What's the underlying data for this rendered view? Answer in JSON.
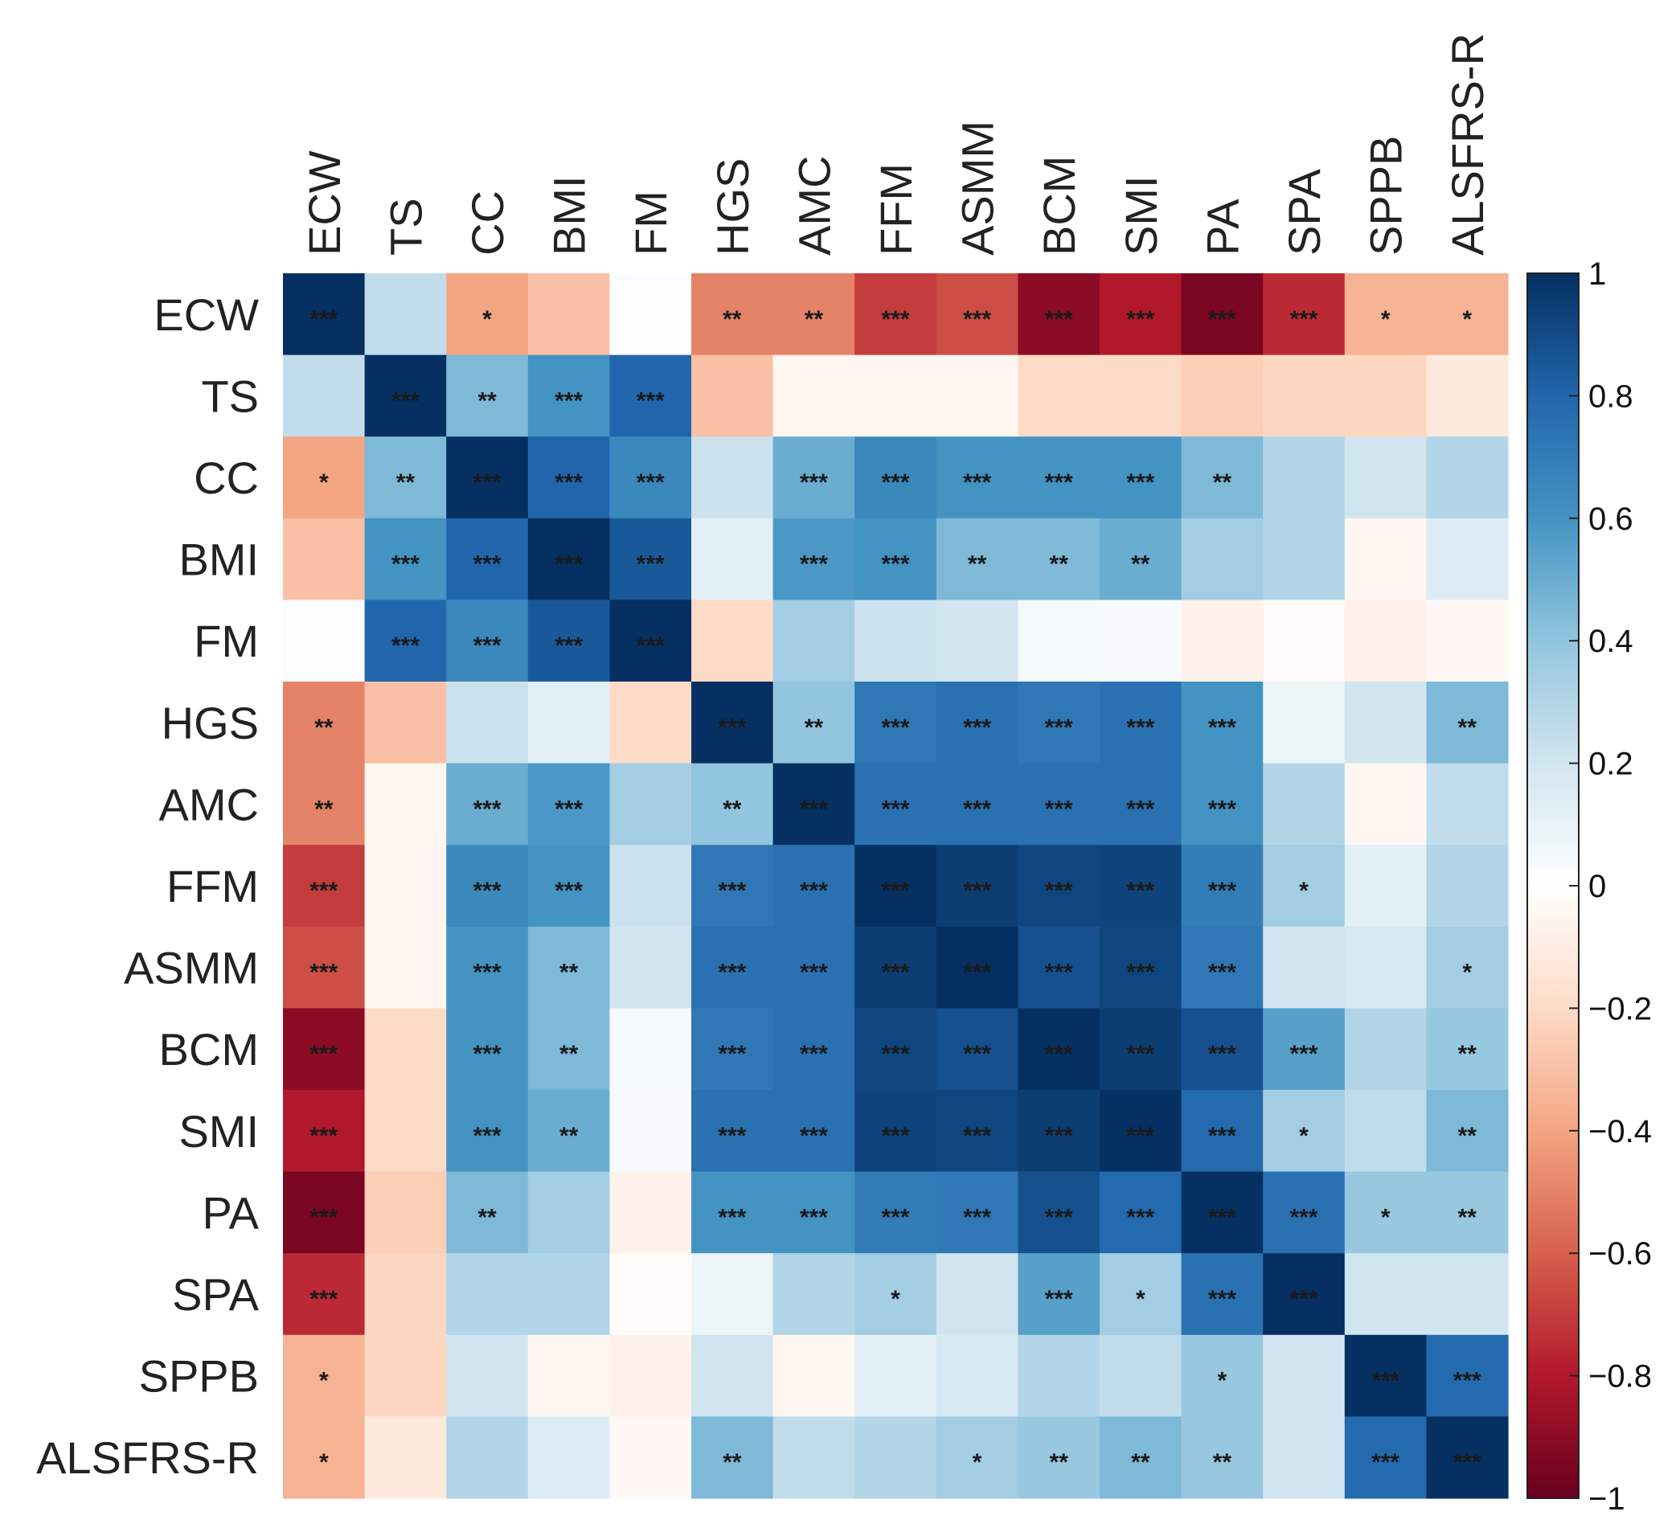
{
  "chart_data": {
    "type": "heatmap",
    "title": "",
    "variables": [
      "ECW",
      "TS",
      "CC",
      "BMI",
      "FM",
      "HGS",
      "AMC",
      "FFM",
      "ASMM",
      "BCM",
      "SMI",
      "PA",
      "SPA",
      "SPPB",
      "ALSFRS-R"
    ],
    "values": [
      [
        1,
        0.25,
        -0.4,
        -0.3,
        0.02,
        -0.5,
        -0.5,
        -0.7,
        -0.65,
        -0.9,
        -0.8,
        -0.95,
        -0.75,
        -0.35,
        -0.35
      ],
      [
        0.25,
        1,
        0.45,
        0.6,
        0.8,
        -0.3,
        -0.05,
        -0.05,
        -0.05,
        -0.2,
        -0.2,
        -0.25,
        -0.22,
        -0.22,
        -0.12
      ],
      [
        -0.4,
        0.45,
        1,
        0.8,
        0.65,
        0.22,
        0.5,
        0.65,
        0.6,
        0.6,
        0.6,
        0.45,
        0.3,
        0.2,
        0.3
      ],
      [
        -0.3,
        0.6,
        0.8,
        1,
        0.85,
        0.12,
        0.58,
        0.6,
        0.45,
        0.45,
        0.5,
        0.35,
        0.3,
        -0.05,
        0.15
      ],
      [
        0.02,
        0.8,
        0.65,
        0.85,
        1,
        -0.2,
        0.35,
        0.22,
        0.2,
        0.05,
        0.04,
        -0.08,
        -0.02,
        -0.08,
        -0.04
      ],
      [
        -0.5,
        -0.3,
        0.22,
        0.12,
        -0.2,
        1,
        0.4,
        0.72,
        0.75,
        0.72,
        0.75,
        0.6,
        0.08,
        0.2,
        0.45
      ],
      [
        -0.5,
        -0.05,
        0.5,
        0.58,
        0.35,
        0.4,
        1,
        0.75,
        0.75,
        0.75,
        0.75,
        0.6,
        0.3,
        -0.05,
        0.25
      ],
      [
        -0.7,
        -0.05,
        0.65,
        0.6,
        0.22,
        0.72,
        0.75,
        1,
        0.95,
        0.92,
        0.93,
        0.7,
        0.35,
        0.12,
        0.3
      ],
      [
        -0.65,
        -0.05,
        0.6,
        0.45,
        0.2,
        0.75,
        0.75,
        0.95,
        1,
        0.88,
        0.92,
        0.72,
        0.2,
        0.18,
        0.35
      ],
      [
        -0.9,
        -0.2,
        0.6,
        0.45,
        0.05,
        0.72,
        0.75,
        0.92,
        0.88,
        1,
        0.95,
        0.88,
        0.55,
        0.3,
        0.38
      ],
      [
        -0.8,
        -0.2,
        0.6,
        0.5,
        0.04,
        0.75,
        0.75,
        0.93,
        0.92,
        0.95,
        1,
        0.78,
        0.35,
        0.25,
        0.45
      ],
      [
        -0.95,
        -0.25,
        0.45,
        0.35,
        -0.08,
        0.6,
        0.6,
        0.7,
        0.72,
        0.88,
        0.78,
        1,
        0.75,
        0.38,
        0.38
      ],
      [
        -0.75,
        -0.22,
        0.3,
        0.3,
        -0.02,
        0.08,
        0.3,
        0.35,
        0.2,
        0.55,
        0.35,
        0.75,
        1,
        0.2,
        0.2
      ],
      [
        -0.35,
        -0.22,
        0.2,
        -0.05,
        -0.08,
        0.2,
        -0.05,
        0.12,
        0.18,
        0.3,
        0.25,
        0.38,
        0.2,
        1,
        0.78
      ],
      [
        -0.35,
        -0.12,
        0.3,
        0.15,
        -0.04,
        0.45,
        0.25,
        0.3,
        0.35,
        0.38,
        0.45,
        0.38,
        0.2,
        0.78,
        1
      ]
    ],
    "significance": [
      [
        "***",
        "",
        "*",
        "",
        "",
        "**",
        "**",
        "***",
        "***",
        "***",
        "***",
        "***",
        "***",
        "*",
        "*"
      ],
      [
        "",
        "***",
        "**",
        "***",
        "***",
        "",
        "",
        "",
        "",
        "",
        "",
        "",
        "",
        "",
        ""
      ],
      [
        "*",
        "**",
        "***",
        "***",
        "***",
        "",
        "***",
        "***",
        "***",
        "***",
        "***",
        "**",
        "",
        "",
        ""
      ],
      [
        "",
        "***",
        "***",
        "***",
        "***",
        "",
        "***",
        "***",
        "**",
        "**",
        "**",
        "",
        "",
        "",
        ""
      ],
      [
        "",
        "***",
        "***",
        "***",
        "***",
        "",
        "",
        "",
        "",
        "",
        "",
        "",
        "",
        "",
        ""
      ],
      [
        "**",
        "",
        "",
        "",
        "",
        "***",
        "**",
        "***",
        "***",
        "***",
        "***",
        "***",
        "",
        "",
        "**"
      ],
      [
        "**",
        "",
        "***",
        "***",
        "",
        "**",
        "***",
        "***",
        "***",
        "***",
        "***",
        "***",
        "",
        "",
        ""
      ],
      [
        "***",
        "",
        "***",
        "***",
        "",
        "***",
        "***",
        "***",
        "***",
        "***",
        "***",
        "***",
        "*",
        "",
        ""
      ],
      [
        "***",
        "",
        "***",
        "**",
        "",
        "***",
        "***",
        "***",
        "***",
        "***",
        "***",
        "***",
        "",
        "",
        "*"
      ],
      [
        "***",
        "",
        "***",
        "**",
        "",
        "***",
        "***",
        "***",
        "***",
        "***",
        "***",
        "***",
        "***",
        "",
        "**"
      ],
      [
        "***",
        "",
        "***",
        "**",
        "",
        "***",
        "***",
        "***",
        "***",
        "***",
        "***",
        "***",
        "*",
        "",
        "**"
      ],
      [
        "***",
        "",
        "**",
        "",
        "",
        "***",
        "***",
        "***",
        "***",
        "***",
        "***",
        "***",
        "***",
        "*",
        "**"
      ],
      [
        "***",
        "",
        "",
        "",
        "",
        "",
        "",
        "*",
        "",
        "***",
        "*",
        "***",
        "***",
        "",
        ""
      ],
      [
        "*",
        "",
        "",
        "",
        "",
        "",
        "",
        "",
        "",
        "",
        "",
        "*",
        "",
        "***",
        "***"
      ],
      [
        "*",
        "",
        "",
        "",
        "",
        "**",
        "",
        "",
        "*",
        "**",
        "**",
        "**",
        "",
        "***",
        "***"
      ]
    ],
    "colorbar": {
      "min": -1,
      "max": 1,
      "ticks": [
        "1",
        "0.8",
        "0.6",
        "0.4",
        "0.2",
        "0",
        "−0.2",
        "−0.4",
        "−0.6",
        "−0.8",
        "−1"
      ],
      "colors": [
        "#67001f",
        "#b2182b",
        "#d6604d",
        "#f4a582",
        "#fddbc7",
        "#ffffff",
        "#d1e5f0",
        "#92c5de",
        "#4393c3",
        "#2166ac",
        "#053061"
      ]
    },
    "xlabel": "",
    "ylabel": ""
  }
}
